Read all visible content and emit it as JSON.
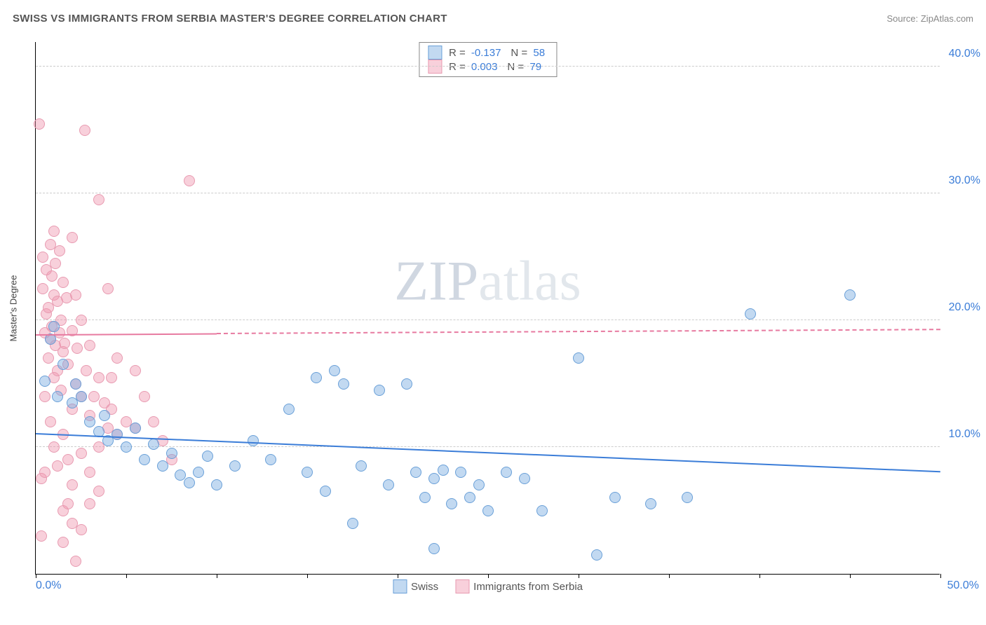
{
  "header": {
    "title": "SWISS VS IMMIGRANTS FROM SERBIA MASTER'S DEGREE CORRELATION CHART",
    "source": "Source: ZipAtlas.com"
  },
  "chart": {
    "type": "scatter",
    "ylabel": "Master's Degree",
    "watermark": "ZIPatlas",
    "xlim": [
      0,
      50
    ],
    "ylim": [
      0,
      42
    ],
    "yticks": [
      10,
      20,
      30,
      40
    ],
    "ytick_labels": [
      "10.0%",
      "20.0%",
      "30.0%",
      "40.0%"
    ],
    "xticks": [
      0,
      5,
      10,
      15,
      20,
      25,
      30,
      35,
      40,
      45,
      50
    ],
    "xtick_labels": {
      "0": "0.0%",
      "50": "50.0%"
    },
    "grid_color": "#cccccc",
    "axis_color": "#000000",
    "tick_label_color": "#3b7dd8",
    "background_color": "#ffffff",
    "point_radius": 8,
    "series": {
      "swiss": {
        "label": "Swiss",
        "fill": "rgba(120,170,225,0.45)",
        "stroke": "#6aa0d8",
        "points": [
          [
            0.5,
            15.2
          ],
          [
            0.8,
            18.5
          ],
          [
            1.0,
            19.5
          ],
          [
            1.2,
            14.0
          ],
          [
            1.5,
            16.5
          ],
          [
            2.0,
            13.5
          ],
          [
            2.2,
            15.0
          ],
          [
            2.5,
            14.0
          ],
          [
            3.0,
            12.0
          ],
          [
            3.5,
            11.2
          ],
          [
            3.8,
            12.5
          ],
          [
            4.0,
            10.5
          ],
          [
            4.5,
            11.0
          ],
          [
            5.0,
            10.0
          ],
          [
            5.5,
            11.5
          ],
          [
            6.0,
            9.0
          ],
          [
            6.5,
            10.2
          ],
          [
            7.0,
            8.5
          ],
          [
            7.5,
            9.5
          ],
          [
            8.0,
            7.8
          ],
          [
            8.5,
            7.2
          ],
          [
            9.0,
            8.0
          ],
          [
            9.5,
            9.3
          ],
          [
            10.0,
            7.0
          ],
          [
            11.0,
            8.5
          ],
          [
            12.0,
            10.5
          ],
          [
            13.0,
            9.0
          ],
          [
            14.0,
            13.0
          ],
          [
            15.0,
            8.0
          ],
          [
            15.5,
            15.5
          ],
          [
            16.0,
            6.5
          ],
          [
            16.5,
            16.0
          ],
          [
            17.0,
            15.0
          ],
          [
            17.5,
            4.0
          ],
          [
            18.0,
            8.5
          ],
          [
            19.0,
            14.5
          ],
          [
            19.5,
            7.0
          ],
          [
            20.5,
            15.0
          ],
          [
            21.0,
            8.0
          ],
          [
            21.5,
            6.0
          ],
          [
            22.0,
            7.5
          ],
          [
            22.5,
            8.2
          ],
          [
            23.0,
            5.5
          ],
          [
            23.5,
            8.0
          ],
          [
            24.0,
            6.0
          ],
          [
            24.5,
            7.0
          ],
          [
            25.0,
            5.0
          ],
          [
            26.0,
            8.0
          ],
          [
            27.0,
            7.5
          ],
          [
            28.0,
            5.0
          ],
          [
            30.0,
            17.0
          ],
          [
            31.0,
            1.5
          ],
          [
            32.0,
            6.0
          ],
          [
            34.0,
            5.5
          ],
          [
            36.0,
            6.0
          ],
          [
            39.5,
            20.5
          ],
          [
            45.0,
            22.0
          ],
          [
            22.0,
            2.0
          ]
        ]
      },
      "serbia": {
        "label": "Immigrants from Serbia",
        "fill": "rgba(240,150,175,0.45)",
        "stroke": "#e89bb1",
        "points": [
          [
            0.2,
            35.5
          ],
          [
            0.3,
            3.0
          ],
          [
            0.3,
            7.5
          ],
          [
            0.4,
            25.0
          ],
          [
            0.4,
            22.5
          ],
          [
            0.5,
            19.0
          ],
          [
            0.5,
            14.0
          ],
          [
            0.5,
            8.0
          ],
          [
            0.6,
            24.0
          ],
          [
            0.6,
            20.5
          ],
          [
            0.7,
            21.0
          ],
          [
            0.7,
            17.0
          ],
          [
            0.8,
            26.0
          ],
          [
            0.8,
            18.5
          ],
          [
            0.8,
            12.0
          ],
          [
            0.9,
            23.5
          ],
          [
            0.9,
            19.5
          ],
          [
            1.0,
            27.0
          ],
          [
            1.0,
            22.0
          ],
          [
            1.0,
            15.5
          ],
          [
            1.0,
            10.0
          ],
          [
            1.1,
            24.5
          ],
          [
            1.1,
            18.0
          ],
          [
            1.2,
            21.5
          ],
          [
            1.2,
            16.0
          ],
          [
            1.2,
            8.5
          ],
          [
            1.3,
            25.5
          ],
          [
            1.3,
            19.0
          ],
          [
            1.4,
            20.0
          ],
          [
            1.4,
            14.5
          ],
          [
            1.5,
            23.0
          ],
          [
            1.5,
            17.5
          ],
          [
            1.5,
            11.0
          ],
          [
            1.5,
            5.0
          ],
          [
            1.6,
            18.2
          ],
          [
            1.7,
            21.8
          ],
          [
            1.8,
            16.5
          ],
          [
            1.8,
            9.0
          ],
          [
            1.8,
            5.5
          ],
          [
            2.0,
            26.5
          ],
          [
            2.0,
            19.2
          ],
          [
            2.0,
            13.0
          ],
          [
            2.0,
            7.0
          ],
          [
            2.2,
            22.0
          ],
          [
            2.2,
            15.0
          ],
          [
            2.3,
            17.8
          ],
          [
            2.5,
            20.0
          ],
          [
            2.5,
            14.0
          ],
          [
            2.5,
            9.5
          ],
          [
            2.5,
            3.5
          ],
          [
            2.7,
            35.0
          ],
          [
            2.8,
            16.0
          ],
          [
            3.0,
            18.0
          ],
          [
            3.0,
            12.5
          ],
          [
            3.0,
            8.0
          ],
          [
            3.0,
            5.5
          ],
          [
            3.2,
            14.0
          ],
          [
            3.5,
            29.5
          ],
          [
            3.5,
            15.5
          ],
          [
            3.5,
            10.0
          ],
          [
            3.5,
            6.5
          ],
          [
            3.8,
            13.5
          ],
          [
            4.0,
            22.5
          ],
          [
            4.0,
            11.5
          ],
          [
            4.2,
            13.0
          ],
          [
            4.2,
            15.5
          ],
          [
            4.5,
            17.0
          ],
          [
            4.5,
            11.0
          ],
          [
            5.0,
            12.0
          ],
          [
            5.5,
            16.0
          ],
          [
            5.5,
            11.5
          ],
          [
            6.0,
            14.0
          ],
          [
            6.5,
            12.0
          ],
          [
            7.0,
            10.5
          ],
          [
            7.5,
            9.0
          ],
          [
            8.5,
            31.0
          ],
          [
            1.5,
            2.5
          ],
          [
            2.0,
            4.0
          ],
          [
            2.2,
            1.0
          ]
        ]
      }
    },
    "trends": {
      "swiss": {
        "color": "#3b7dd8",
        "y_start": 11.0,
        "y_end": 8.0,
        "solid_until": 50
      },
      "serbia": {
        "color": "#e77aa0",
        "y_start": 18.8,
        "y_end": 19.2,
        "solid_until": 10
      }
    },
    "rn_legend": [
      {
        "swatch_fill": "rgba(120,170,225,0.45)",
        "swatch_stroke": "#6aa0d8",
        "r": "-0.137",
        "n": "58"
      },
      {
        "swatch_fill": "rgba(240,150,175,0.45)",
        "swatch_stroke": "#e89bb1",
        "r": "0.003",
        "n": "79"
      }
    ],
    "bottom_legend": [
      {
        "swatch_fill": "rgba(120,170,225,0.45)",
        "swatch_stroke": "#6aa0d8",
        "label": "Swiss"
      },
      {
        "swatch_fill": "rgba(240,150,175,0.45)",
        "swatch_stroke": "#e89bb1",
        "label": "Immigrants from Serbia"
      }
    ]
  }
}
